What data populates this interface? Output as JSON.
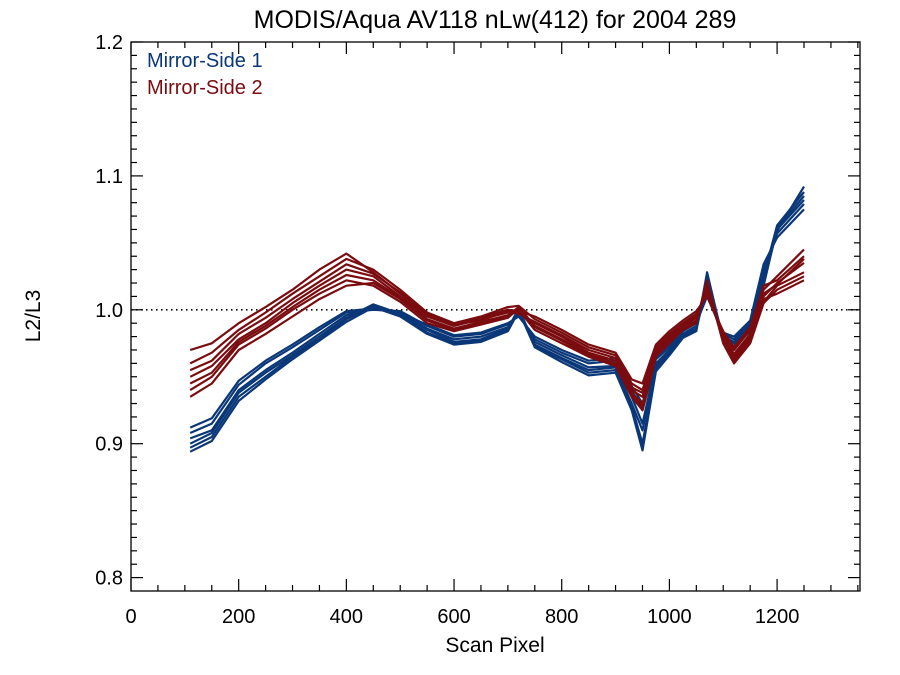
{
  "chart_data": {
    "type": "line",
    "title": "MODIS/Aqua AV118 nLw(412) for 2004 289",
    "xlabel": "Scan Pixel",
    "ylabel": "L2/L3",
    "xlim": [
      0,
      1354
    ],
    "ylim": [
      0.79,
      1.2
    ],
    "xticks": [
      0,
      200,
      400,
      600,
      800,
      1000,
      1200
    ],
    "xtick_labels": [
      "0",
      "200",
      "400",
      "600",
      "800",
      "1000",
      "1200"
    ],
    "yticks": [
      0.8,
      0.9,
      1.0,
      1.1,
      1.2
    ],
    "ytick_labels": [
      "0.8",
      "0.9",
      "1.0",
      "1.1",
      "1.2"
    ],
    "reference_line": {
      "y": 1.0,
      "style": "dotted"
    },
    "legend_position": "top-left",
    "series": [
      {
        "name": "Mirror-Side 1",
        "color": "#0a3778",
        "x": [
          110,
          150,
          200,
          250,
          300,
          350,
          400,
          450,
          500,
          550,
          600,
          650,
          700,
          720,
          750,
          800,
          850,
          900,
          930,
          950,
          975,
          1000,
          1025,
          1050,
          1070,
          1100,
          1120,
          1150,
          1175,
          1200,
          1250
        ],
        "curves": [
          [
            0.897,
            0.905,
            0.935,
            0.95,
            0.965,
            0.978,
            0.993,
            1.003,
            0.996,
            0.983,
            0.975,
            0.977,
            0.985,
            1.0,
            0.973,
            0.963,
            0.953,
            0.955,
            0.928,
            0.9,
            0.956,
            0.968,
            0.98,
            0.985,
            1.02,
            0.978,
            0.973,
            0.985,
            1.02,
            1.06,
            1.082
          ],
          [
            0.904,
            0.91,
            0.94,
            0.955,
            0.968,
            0.982,
            0.996,
            1.002,
            0.998,
            0.986,
            0.978,
            0.98,
            0.987,
            0.998,
            0.976,
            0.966,
            0.957,
            0.958,
            0.935,
            0.915,
            0.96,
            0.97,
            0.982,
            0.988,
            1.015,
            0.98,
            0.976,
            0.988,
            1.025,
            1.063,
            1.088
          ],
          [
            0.908,
            0.915,
            0.944,
            0.96,
            0.972,
            0.985,
            0.998,
            1.0,
            0.999,
            0.988,
            0.98,
            0.982,
            0.989,
            0.996,
            0.978,
            0.968,
            0.96,
            0.962,
            0.94,
            0.925,
            0.963,
            0.972,
            0.984,
            0.99,
            1.01,
            0.982,
            0.978,
            0.99,
            1.03,
            1.057,
            1.079
          ],
          [
            0.9,
            0.908,
            0.938,
            0.953,
            0.966,
            0.98,
            0.994,
            1.004,
            0.997,
            0.985,
            0.976,
            0.978,
            0.986,
            1.001,
            0.974,
            0.964,
            0.955,
            0.957,
            0.93,
            0.91,
            0.958,
            0.969,
            0.981,
            0.986,
            1.024,
            0.979,
            0.975,
            0.986,
            1.022,
            1.059,
            1.092
          ],
          [
            0.912,
            0.919,
            0.947,
            0.962,
            0.974,
            0.987,
            0.999,
            1.001,
            0.997,
            0.989,
            0.981,
            0.983,
            0.99,
            0.995,
            0.98,
            0.97,
            0.962,
            0.964,
            0.943,
            0.93,
            0.965,
            0.974,
            0.986,
            0.991,
            1.012,
            0.983,
            0.98,
            0.992,
            1.034,
            1.054,
            1.075
          ],
          [
            0.894,
            0.902,
            0.932,
            0.948,
            0.963,
            0.977,
            0.991,
            1.002,
            0.995,
            0.982,
            0.974,
            0.976,
            0.984,
            0.999,
            0.972,
            0.961,
            0.951,
            0.953,
            0.925,
            0.895,
            0.954,
            0.966,
            0.979,
            0.984,
            1.028,
            0.977,
            0.972,
            0.984,
            1.018,
            1.061,
            1.085
          ]
        ]
      },
      {
        "name": "Mirror-Side 2",
        "color": "#7a0c10",
        "x": [
          110,
          150,
          200,
          250,
          300,
          350,
          400,
          450,
          500,
          550,
          600,
          650,
          700,
          720,
          750,
          800,
          850,
          900,
          930,
          950,
          975,
          1000,
          1025,
          1050,
          1070,
          1100,
          1120,
          1150,
          1175,
          1200,
          1250
        ],
        "curves": [
          [
            0.935,
            0.945,
            0.97,
            0.982,
            0.995,
            1.008,
            1.018,
            1.02,
            1.008,
            0.992,
            0.985,
            0.99,
            0.995,
            1.0,
            0.985,
            0.975,
            0.965,
            0.958,
            0.935,
            0.925,
            0.965,
            0.975,
            0.985,
            0.99,
            1.02,
            0.975,
            0.96,
            0.975,
            1.005,
            1.015,
            1.025
          ],
          [
            0.95,
            0.958,
            0.978,
            0.99,
            1.005,
            1.018,
            1.03,
            1.025,
            1.01,
            0.995,
            0.988,
            0.993,
            0.998,
            0.998,
            0.99,
            0.98,
            0.968,
            0.962,
            0.94,
            0.935,
            0.968,
            0.978,
            0.988,
            0.994,
            1.015,
            0.978,
            0.965,
            0.98,
            1.01,
            1.02,
            1.035
          ],
          [
            0.96,
            0.968,
            0.985,
            0.998,
            1.012,
            1.025,
            1.038,
            1.03,
            1.015,
            0.998,
            0.99,
            0.995,
            1.002,
            1.003,
            0.993,
            0.983,
            0.972,
            0.966,
            0.945,
            0.94,
            0.972,
            0.982,
            0.99,
            0.997,
            1.012,
            0.982,
            0.97,
            0.985,
            1.015,
            1.025,
            1.045
          ],
          [
            0.94,
            0.95,
            0.974,
            0.986,
            1.0,
            1.012,
            1.022,
            1.018,
            1.006,
            0.99,
            0.984,
            0.989,
            0.994,
            1.001,
            0.987,
            0.977,
            0.966,
            0.959,
            0.937,
            0.928,
            0.966,
            0.976,
            0.986,
            0.991,
            1.022,
            0.976,
            0.962,
            0.977,
            1.006,
            1.018,
            1.028
          ],
          [
            0.97,
            0.975,
            0.99,
            1.002,
            1.015,
            1.03,
            1.042,
            1.028,
            1.012,
            0.996,
            0.989,
            0.994,
            1.0,
            0.999,
            0.995,
            0.985,
            0.974,
            0.968,
            0.948,
            0.945,
            0.974,
            0.984,
            0.992,
            0.999,
            1.01,
            0.984,
            0.972,
            0.987,
            1.018,
            1.022,
            1.04
          ],
          [
            0.945,
            0.953,
            0.976,
            0.988,
            1.002,
            1.015,
            1.026,
            1.022,
            1.009,
            0.993,
            0.986,
            0.991,
            0.996,
            1.002,
            0.988,
            0.978,
            0.967,
            0.96,
            0.938,
            0.93,
            0.967,
            0.977,
            0.987,
            0.992,
            1.018,
            0.977,
            0.963,
            0.978,
            1.008,
            1.012,
            1.022
          ],
          [
            0.955,
            0.962,
            0.982,
            0.994,
            1.008,
            1.021,
            1.034,
            1.027,
            1.013,
            0.997,
            0.989,
            0.992,
            0.999,
            0.997,
            0.991,
            0.981,
            0.97,
            0.964,
            0.942,
            0.938,
            0.97,
            0.98,
            0.989,
            0.995,
            1.014,
            0.98,
            0.967,
            0.982,
            1.012,
            1.019,
            1.038
          ]
        ]
      }
    ]
  }
}
